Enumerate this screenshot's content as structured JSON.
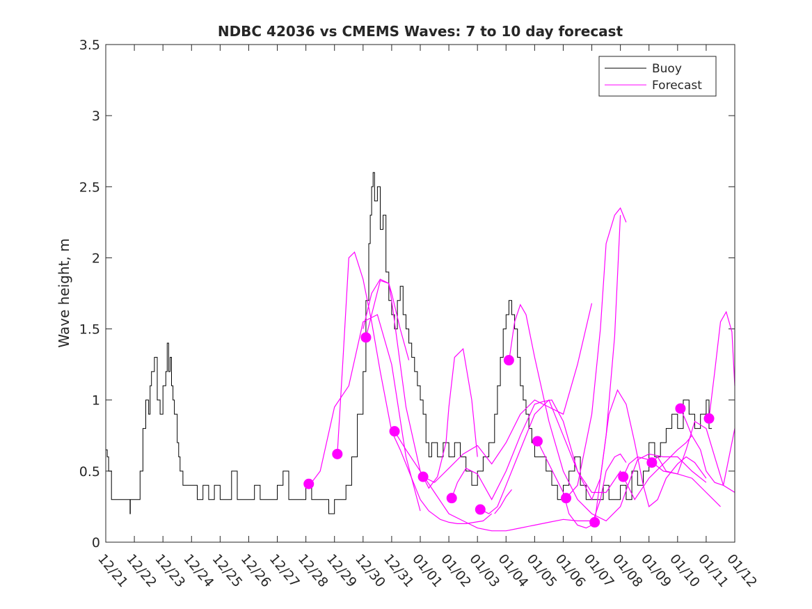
{
  "chart_data": {
    "type": "line",
    "title": "NDBC 42036 vs CMEMS Waves: 7 to 10 day forecast",
    "xlabel": "",
    "ylabel": "Wave height, m",
    "xlim": [
      0,
      22
    ],
    "ylim": [
      0,
      3.5
    ],
    "yticks": [
      0,
      0.5,
      1,
      1.5,
      2,
      2.5,
      3,
      3.5
    ],
    "ytick_labels": [
      "0",
      "0.5",
      "1",
      "1.5",
      "2",
      "2.5",
      "3",
      "3.5"
    ],
    "xticks": [
      0,
      1,
      2,
      3,
      4,
      5,
      6,
      7,
      8,
      9,
      10,
      11,
      12,
      13,
      14,
      15,
      16,
      17,
      18,
      19,
      20,
      21,
      22
    ],
    "xtick_labels": [
      "12/21",
      "12/22",
      "12/23",
      "12/24",
      "12/25",
      "12/26",
      "12/27",
      "12/28",
      "12/29",
      "12/30",
      "12/31",
      "01/01",
      "01/02",
      "01/03",
      "01/04",
      "01/05",
      "01/06",
      "01/07",
      "01/08",
      "01/09",
      "01/10",
      "01/11",
      "01/12"
    ],
    "legend": {
      "position": "top-right",
      "entries": [
        {
          "label": "Buoy",
          "color": "#000000"
        },
        {
          "label": "Forecast",
          "color": "#ff00ff"
        }
      ]
    },
    "buoy": {
      "name": "Buoy",
      "color": "#000000",
      "x": [
        0,
        0.05,
        0.1,
        0.2,
        0.3,
        0.5,
        0.8,
        0.85,
        0.86,
        1.0,
        1.1,
        1.2,
        1.3,
        1.4,
        1.5,
        1.55,
        1.6,
        1.7,
        1.8,
        1.9,
        2.0,
        2.1,
        2.15,
        2.2,
        2.25,
        2.3,
        2.35,
        2.4,
        2.5,
        2.55,
        2.6,
        2.7,
        2.8,
        2.9,
        3.0,
        3.2,
        3.4,
        3.6,
        3.8,
        4.0,
        4.2,
        4.4,
        4.6,
        4.8,
        5.0,
        5.2,
        5.4,
        5.6,
        5.8,
        6.0,
        6.2,
        6.4,
        6.6,
        6.8,
        7.0,
        7.2,
        7.4,
        7.6,
        7.8,
        8.0,
        8.2,
        8.4,
        8.6,
        8.8,
        9.0,
        9.1,
        9.2,
        9.25,
        9.3,
        9.35,
        9.4,
        9.5,
        9.6,
        9.7,
        9.8,
        9.9,
        10.0,
        10.1,
        10.2,
        10.3,
        10.4,
        10.5,
        10.6,
        10.7,
        10.8,
        10.9,
        11.0,
        11.1,
        11.2,
        11.3,
        11.4,
        11.6,
        11.8,
        12.0,
        12.2,
        12.4,
        12.6,
        12.8,
        13.0,
        13.2,
        13.4,
        13.6,
        13.7,
        13.8,
        13.9,
        14.0,
        14.1,
        14.2,
        14.3,
        14.4,
        14.5,
        14.6,
        14.7,
        14.8,
        14.9,
        15.0,
        15.2,
        15.4,
        15.6,
        15.8,
        16.0,
        16.2,
        16.4,
        16.6,
        16.8,
        17.0,
        17.2,
        17.4,
        17.6,
        17.8,
        18.0,
        18.2,
        18.4,
        18.6,
        18.8,
        19.0,
        19.2,
        19.4,
        19.6,
        19.8,
        20.0,
        20.2,
        20.4,
        20.6,
        20.8,
        21.0,
        21.1,
        21.2
      ],
      "y": [
        0.65,
        0.6,
        0.5,
        0.3,
        0.3,
        0.3,
        0.3,
        0.2,
        0.3,
        0.3,
        0.3,
        0.5,
        0.8,
        1.0,
        0.9,
        1.1,
        1.2,
        1.3,
        1.0,
        0.9,
        1.1,
        1.2,
        1.4,
        1.2,
        1.3,
        1.1,
        1.0,
        0.9,
        0.7,
        0.6,
        0.5,
        0.4,
        0.4,
        0.4,
        0.4,
        0.3,
        0.4,
        0.3,
        0.4,
        0.3,
        0.3,
        0.5,
        0.3,
        0.3,
        0.3,
        0.4,
        0.3,
        0.3,
        0.3,
        0.4,
        0.5,
        0.3,
        0.3,
        0.3,
        0.4,
        0.3,
        0.3,
        0.3,
        0.2,
        0.3,
        0.3,
        0.4,
        0.6,
        0.9,
        1.2,
        1.7,
        2.1,
        2.3,
        2.5,
        2.6,
        2.4,
        2.5,
        2.2,
        2.3,
        1.9,
        1.7,
        1.6,
        1.5,
        1.7,
        1.8,
        1.6,
        1.5,
        1.4,
        1.3,
        1.2,
        1.1,
        1.0,
        0.9,
        0.7,
        0.6,
        0.7,
        0.6,
        0.7,
        0.6,
        0.7,
        0.6,
        0.5,
        0.4,
        0.5,
        0.6,
        0.7,
        0.9,
        1.1,
        1.3,
        1.5,
        1.6,
        1.7,
        1.6,
        1.5,
        1.3,
        1.1,
        1.0,
        0.9,
        0.8,
        0.7,
        0.6,
        0.6,
        0.5,
        0.4,
        0.3,
        0.4,
        0.5,
        0.6,
        0.4,
        0.3,
        0.3,
        0.3,
        0.4,
        0.3,
        0.3,
        0.4,
        0.3,
        0.5,
        0.4,
        0.5,
        0.7,
        0.6,
        0.7,
        0.8,
        0.9,
        0.8,
        1.0,
        0.9,
        0.8,
        0.9,
        1.0,
        0.8,
        0.8
      ]
    },
    "forecast": {
      "name": "Forecast",
      "color": "#ff00ff",
      "lines": [
        {
          "x": [
            7.2,
            7.5,
            8.0,
            8.5,
            9.0,
            9.5,
            10.0,
            10.5,
            11.0
          ],
          "y": [
            0.42,
            0.5,
            0.95,
            1.1,
            1.55,
            1.6,
            1.25,
            0.6,
            0.22
          ]
        },
        {
          "x": [
            8.1,
            8.3,
            8.5,
            8.7,
            9.0,
            9.3,
            9.6,
            10.0,
            10.3,
            10.6,
            11.0,
            11.3,
            11.7,
            12.0,
            12.3,
            12.6,
            12.9,
            13.2,
            13.5
          ],
          "y": [
            0.62,
            1.3,
            2.0,
            2.04,
            1.85,
            1.55,
            1.2,
            0.78,
            0.65,
            0.5,
            0.3,
            0.22,
            0.16,
            0.14,
            0.13,
            0.13,
            0.14,
            0.15,
            0.2
          ]
        },
        {
          "x": [
            9.1,
            9.3,
            9.6,
            9.9,
            10.0,
            10.5,
            11.0,
            11.5,
            12.0,
            12.5,
            13.0,
            13.5,
            14.0,
            14.5,
            15.0,
            15.5,
            16.0,
            16.5,
            17.0
          ],
          "y": [
            1.44,
            1.6,
            1.84,
            1.82,
            1.7,
            0.95,
            0.5,
            0.35,
            0.2,
            0.15,
            0.1,
            0.08,
            0.08,
            0.1,
            0.12,
            0.14,
            0.16,
            0.15,
            0.15
          ]
        },
        {
          "x": [
            9.0,
            9.3,
            9.6,
            9.9,
            10.0,
            10.3,
            10.6
          ],
          "y": [
            1.5,
            1.75,
            1.85,
            1.82,
            1.75,
            1.5,
            1.28
          ]
        },
        {
          "x": [
            10.1,
            10.5,
            11.0,
            11.3,
            11.6,
            11.9,
            12.0,
            12.2,
            12.5,
            12.8,
            13.0
          ],
          "y": [
            0.78,
            0.65,
            0.5,
            0.38,
            0.46,
            0.7,
            0.95,
            1.3,
            1.36,
            1.0,
            0.6
          ]
        },
        {
          "x": [
            11.1,
            11.5,
            12.0,
            12.5,
            13.0,
            13.5,
            14.0,
            14.5,
            15.0,
            15.5,
            16.0,
            16.5,
            17.0
          ],
          "y": [
            0.46,
            0.42,
            0.52,
            0.62,
            0.68,
            0.55,
            0.7,
            0.9,
            1.0,
            0.95,
            0.9,
            1.25,
            1.68
          ]
        },
        {
          "x": [
            12.1,
            12.3,
            12.6,
            13.0,
            13.5,
            14.0,
            14.5,
            15.0,
            15.3,
            15.6,
            16.0,
            16.5,
            17.0,
            17.3,
            17.5,
            17.8,
            18.0
          ],
          "y": [
            0.31,
            0.42,
            0.52,
            0.48,
            0.3,
            0.5,
            0.75,
            0.97,
            0.99,
            1.0,
            0.85,
            0.5,
            0.3,
            0.45,
            0.75,
            1.45,
            2.3
          ]
        },
        {
          "x": [
            13.1,
            13.4,
            13.7,
            14.0,
            14.3,
            14.6,
            15.0,
            15.5,
            16.0,
            16.5,
            17.0,
            17.5,
            18.0,
            18.5,
            19.0,
            19.5,
            20.0,
            20.3,
            20.5
          ],
          "y": [
            0.23,
            0.2,
            0.25,
            0.4,
            0.55,
            0.7,
            0.9,
            1.0,
            0.75,
            0.5,
            0.35,
            0.35,
            0.5,
            0.3,
            0.45,
            0.55,
            0.65,
            0.7,
            0.75
          ]
        },
        {
          "x": [
            13.6,
            13.8,
            14.0,
            14.2
          ],
          "y": [
            0.2,
            0.25,
            0.32,
            0.37
          ]
        },
        {
          "x": [
            14.1,
            14.3,
            14.5,
            14.7,
            15.0,
            15.5,
            16.0,
            16.5,
            17.0,
            17.5,
            18.0,
            18.3,
            18.6,
            19.0,
            19.5,
            20.0,
            20.5,
            21.0
          ],
          "y": [
            1.27,
            1.55,
            1.67,
            1.6,
            1.3,
            0.85,
            0.5,
            0.3,
            0.2,
            0.15,
            0.25,
            0.42,
            0.58,
            0.62,
            0.6,
            0.6,
            0.5,
            0.42
          ]
        },
        {
          "x": [
            15.1,
            15.5,
            16.0,
            16.2,
            16.5,
            16.8,
            17.0,
            17.3,
            17.5,
            17.8,
            18.0,
            18.2
          ],
          "y": [
            0.71,
            0.55,
            0.35,
            0.2,
            0.12,
            0.1,
            0.12,
            0.3,
            0.5,
            0.6,
            0.62,
            0.56
          ]
        },
        {
          "x": [
            16.1,
            16.5,
            17.0,
            17.3,
            17.5,
            17.8,
            18.0,
            18.2
          ],
          "y": [
            0.31,
            0.4,
            0.9,
            1.5,
            2.1,
            2.3,
            2.35,
            2.25
          ]
        },
        {
          "x": [
            17.1,
            17.3,
            17.6,
            17.9,
            18.2,
            18.5,
            18.8,
            19.0,
            19.3,
            19.6,
            20.0,
            20.3,
            20.6,
            21.0
          ],
          "y": [
            0.14,
            0.45,
            0.9,
            1.07,
            0.97,
            0.7,
            0.4,
            0.25,
            0.3,
            0.45,
            0.55,
            0.6,
            0.56,
            0.45
          ]
        },
        {
          "x": [
            18.1,
            18.3,
            18.6,
            19.0,
            19.5,
            20.0,
            20.5,
            21.0,
            21.5
          ],
          "y": [
            0.46,
            0.55,
            0.6,
            0.58,
            0.5,
            0.48,
            0.45,
            0.35,
            0.25
          ]
        },
        {
          "x": [
            19.1,
            19.3,
            19.6,
            20.0,
            20.3,
            20.6,
            21.0,
            21.3,
            21.6,
            22.0
          ],
          "y": [
            0.56,
            0.6,
            0.5,
            0.48,
            0.65,
            0.85,
            0.8,
            0.6,
            0.4,
            0.35
          ]
        },
        {
          "x": [
            20.1,
            20.3,
            20.5,
            20.8,
            21.0,
            21.3,
            21.6,
            22.0
          ],
          "y": [
            0.94,
            0.85,
            0.75,
            0.65,
            0.5,
            0.42,
            0.4,
            0.8
          ]
        },
        {
          "x": [
            21.1,
            21.3,
            21.5,
            21.7,
            21.9,
            22.0
          ],
          "y": [
            0.87,
            1.2,
            1.55,
            1.62,
            1.48,
            1.1
          ]
        }
      ],
      "markers": {
        "x": [
          7.1,
          8.1,
          9.1,
          10.1,
          11.1,
          12.1,
          13.1,
          14.1,
          15.1,
          16.1,
          17.1,
          18.1,
          19.1,
          20.1,
          21.1
        ],
        "y": [
          0.41,
          0.62,
          1.44,
          0.78,
          0.46,
          0.31,
          0.23,
          1.28,
          0.71,
          0.31,
          0.14,
          0.46,
          0.56,
          0.94,
          0.87
        ]
      }
    }
  }
}
